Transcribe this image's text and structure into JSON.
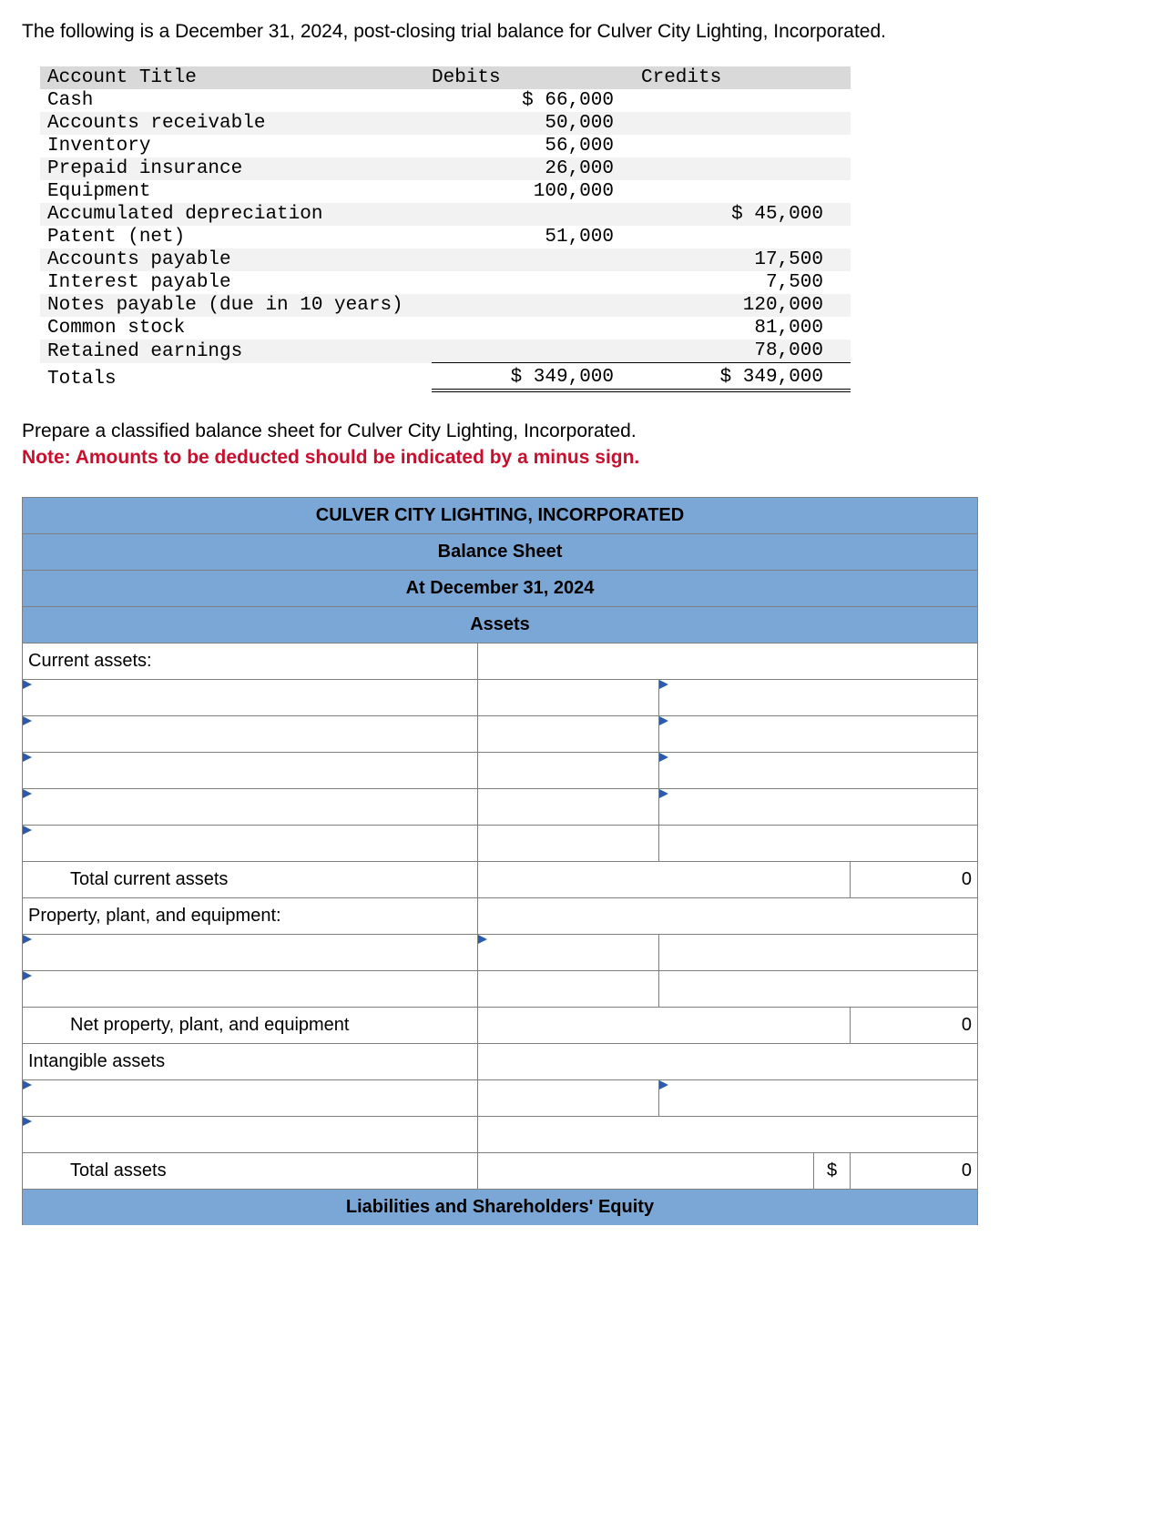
{
  "intro": "The following is a December 31, 2024, post-closing trial balance for Culver City Lighting, Incorporated.",
  "trial_balance": {
    "headers": {
      "acct": "Account Title",
      "dr": "Debits",
      "cr": "Credits"
    },
    "rows": [
      {
        "acct": "Cash",
        "dr": "$ 66,000",
        "cr": ""
      },
      {
        "acct": "Accounts receivable",
        "dr": "50,000",
        "cr": ""
      },
      {
        "acct": "Inventory",
        "dr": "56,000",
        "cr": ""
      },
      {
        "acct": "Prepaid insurance",
        "dr": "26,000",
        "cr": ""
      },
      {
        "acct": "Equipment",
        "dr": "100,000",
        "cr": ""
      },
      {
        "acct": "Accumulated depreciation",
        "dr": "",
        "cr": "$ 45,000"
      },
      {
        "acct": "Patent (net)",
        "dr": "51,000",
        "cr": ""
      },
      {
        "acct": "Accounts payable",
        "dr": "",
        "cr": "17,500"
      },
      {
        "acct": "Interest payable",
        "dr": "",
        "cr": "7,500"
      },
      {
        "acct": "Notes payable (due in 10 years)",
        "dr": "",
        "cr": "120,000"
      },
      {
        "acct": "Common stock",
        "dr": "",
        "cr": "81,000"
      },
      {
        "acct": "Retained earnings",
        "dr": "",
        "cr": "78,000"
      }
    ],
    "totals": {
      "acct": "Totals",
      "dr": "$ 349,000",
      "cr": "$ 349,000"
    },
    "striped_rows": [
      1,
      3,
      5,
      7,
      9,
      11
    ],
    "colors": {
      "header_bg": "#d9d9d9",
      "stripe_bg": "#f2f2f2"
    }
  },
  "instructions": {
    "line1": "Prepare a classified balance sheet for Culver City Lighting, Incorporated.",
    "line2": "Note: Amounts to be deducted should be indicated by a minus sign."
  },
  "balance_sheet": {
    "company": "CULVER CITY LIGHTING, INCORPORATED",
    "title": "Balance Sheet",
    "date": "At December 31, 2024",
    "section_assets": "Assets",
    "current_assets_label": "Current assets:",
    "total_current_assets_label": "Total current assets",
    "total_current_assets_value": "0",
    "ppe_label": "Property, plant, and equipment:",
    "net_ppe_label": "Net property, plant, and equipment",
    "net_ppe_value": "0",
    "intangible_label": "Intangible assets",
    "total_assets_label": "Total assets",
    "total_assets_currency": "$",
    "total_assets_value": "0",
    "section_liab": "Liabilities and Shareholders' Equity",
    "header_bg": "#7ba7d7",
    "border_color": "#7f7f7f",
    "dropdown_triangle_color": "#2a5caa"
  }
}
